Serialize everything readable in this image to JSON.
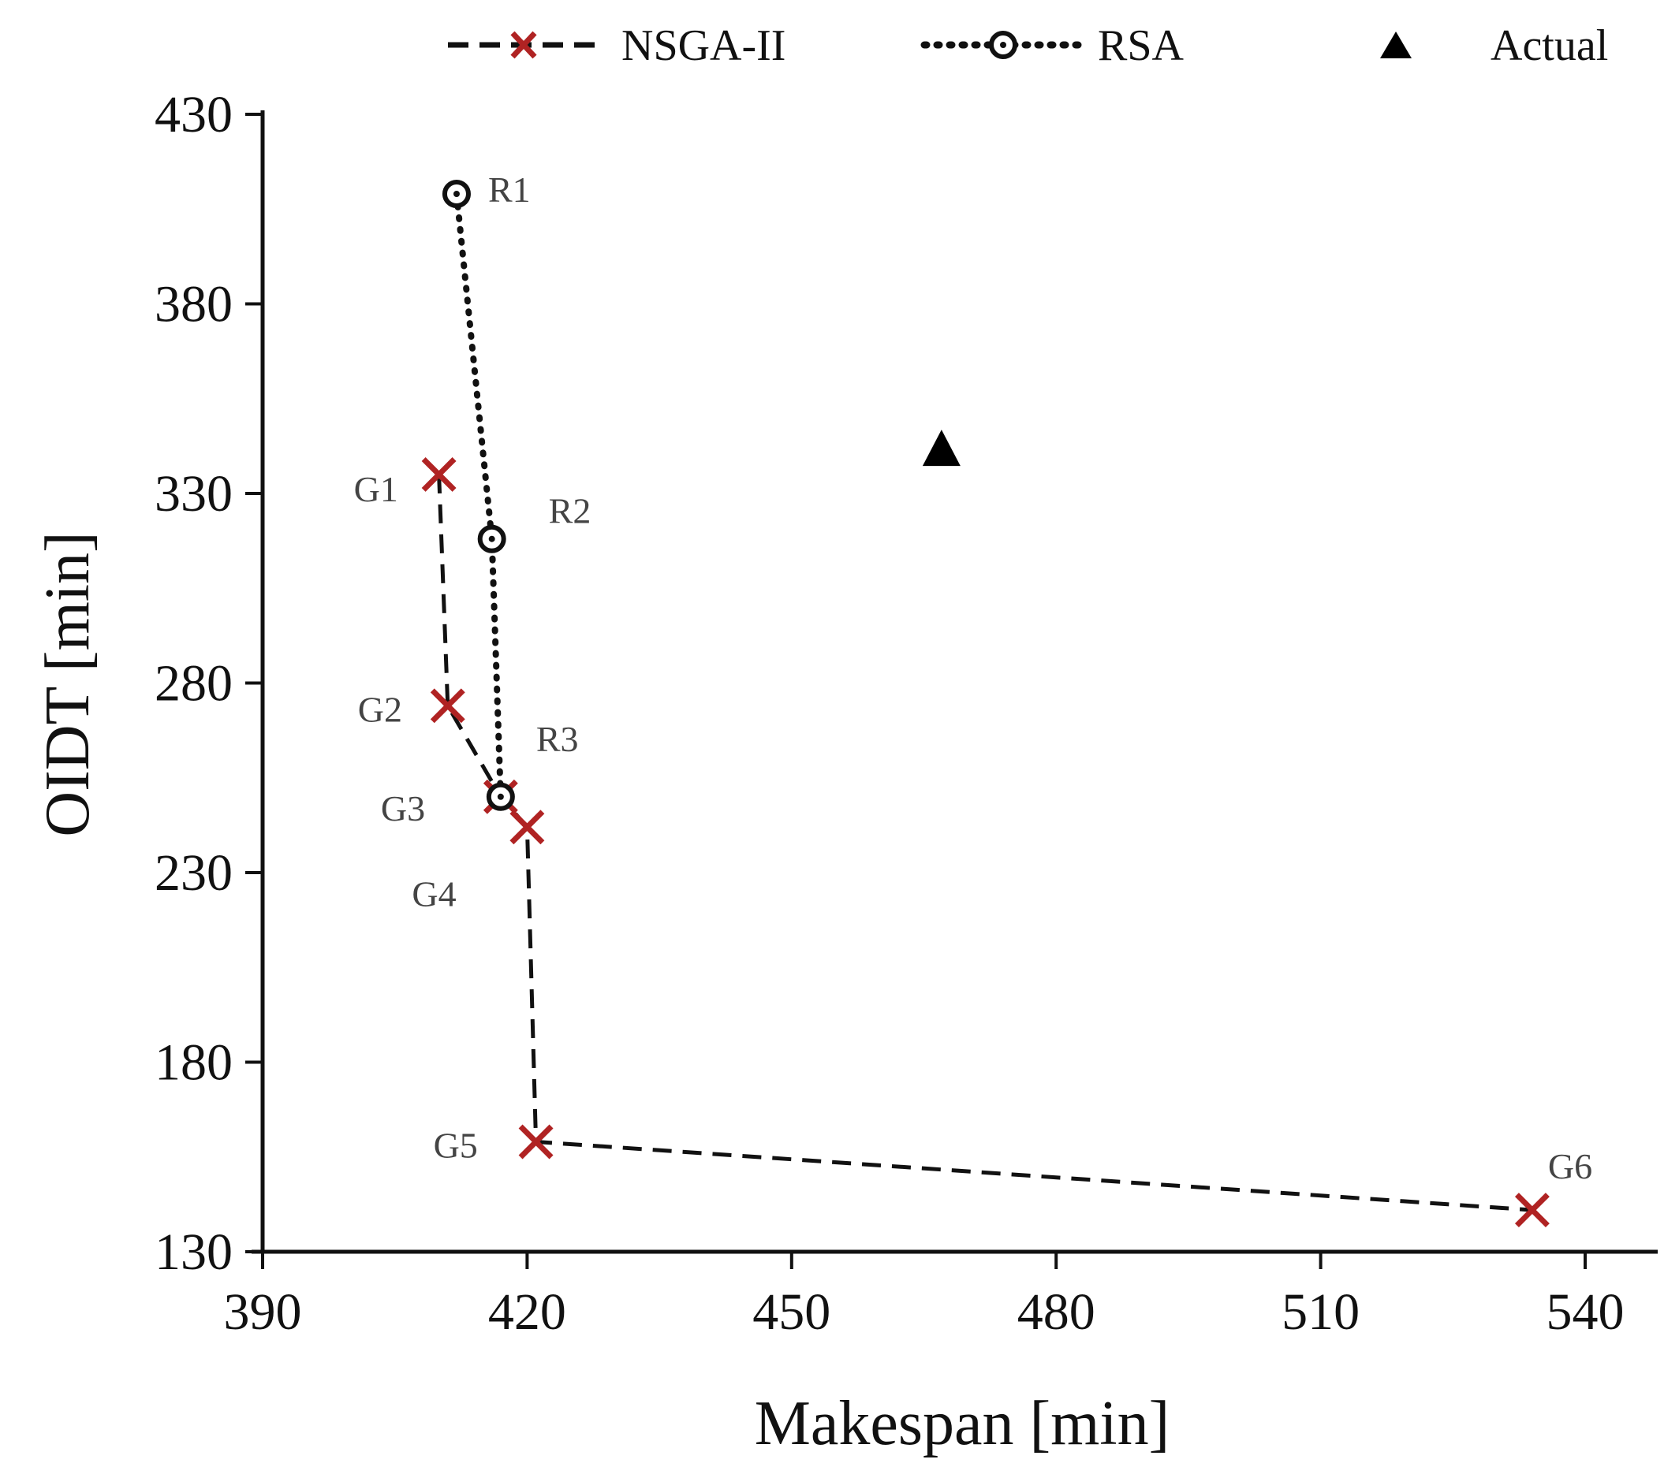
{
  "chart_data": {
    "type": "scatter",
    "xlabel": "Makespan [min]",
    "ylabel": "OIDT [min]",
    "xlim": [
      390,
      550
    ],
    "ylim": [
      130,
      440
    ],
    "xticks": [
      "390",
      "420",
      "450",
      "480",
      "510",
      "540"
    ],
    "yticks": [
      "430",
      "380",
      "330",
      "280",
      "230",
      "180",
      "130"
    ],
    "legend_position": "top",
    "series": [
      {
        "name": "NSGA-II",
        "marker": "x",
        "line": "dashed",
        "color": "#b02323",
        "points": [
          {
            "label": "G1",
            "x": 410,
            "y": 335
          },
          {
            "label": "G2",
            "x": 411,
            "y": 274
          },
          {
            "label": "G3",
            "x": 417,
            "y": 250
          },
          {
            "label": "G4",
            "x": 420,
            "y": 242
          },
          {
            "label": "G5",
            "x": 421,
            "y": 159
          },
          {
            "label": "G6",
            "x": 534,
            "y": 141
          }
        ]
      },
      {
        "name": "RSA",
        "marker": "circle-dot",
        "line": "dotted",
        "color": "#111111",
        "points": [
          {
            "label": "R1",
            "x": 412,
            "y": 409
          },
          {
            "label": "R2",
            "x": 416,
            "y": 318
          },
          {
            "label": "R3",
            "x": 417,
            "y": 250
          }
        ]
      },
      {
        "name": "Actual",
        "marker": "triangle",
        "line": "none",
        "color": "#000000",
        "points": [
          {
            "label": "",
            "x": 467,
            "y": 341
          }
        ]
      }
    ]
  }
}
